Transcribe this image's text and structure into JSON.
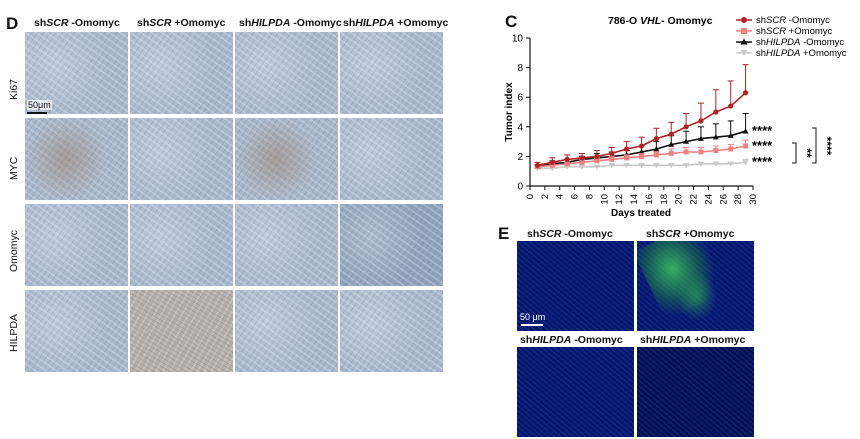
{
  "panel_d": {
    "letter": "D",
    "col_headers": [
      {
        "pre": "sh",
        "gene": "SCR",
        "post": " -Omomyc"
      },
      {
        "pre": "sh",
        "gene": "SCR",
        "post": " +Omomyc"
      },
      {
        "pre": "sh",
        "gene": "HILPDA",
        "post": " -Omomyc"
      },
      {
        "pre": "sh",
        "gene": "HILPDA",
        "post": " +Omomyc"
      }
    ],
    "row_labels": [
      "Ki67",
      "MYC",
      "Omomyc",
      "HILPDA"
    ],
    "scale_bar": "50μm"
  },
  "panel_c": {
    "letter": "C",
    "chart_data": {
      "type": "line",
      "title_pre": "786-O ",
      "title_gene": "VHL-",
      "title_post": " Omomyc",
      "xlabel": "Days treated",
      "ylabel": "Tumor index",
      "xlim": [
        0,
        30
      ],
      "ylim": [
        0,
        10
      ],
      "xticks": [
        "0",
        "2",
        "4",
        "6",
        "8",
        "10",
        "12",
        "14",
        "16",
        "18",
        "20",
        "22",
        "24",
        "26",
        "28",
        "30"
      ],
      "yticks": [
        "0",
        "2",
        "4",
        "6",
        "8",
        "10"
      ],
      "x": [
        1,
        3,
        5,
        7,
        9,
        11,
        13,
        15,
        17,
        19,
        21,
        23,
        25,
        27,
        29
      ],
      "series": [
        {
          "name_pre": "sh",
          "name_gene": "SCR",
          "name_post": " -Omomyc",
          "color": "#b22222",
          "marker": "circle",
          "values": [
            1.4,
            1.6,
            1.8,
            1.9,
            2.0,
            2.2,
            2.5,
            2.7,
            3.2,
            3.5,
            4.0,
            4.4,
            5.0,
            5.4,
            6.3
          ],
          "errors": [
            0.2,
            0.3,
            0.3,
            0.3,
            0.4,
            0.4,
            0.5,
            0.6,
            0.7,
            0.8,
            0.9,
            1.2,
            1.5,
            1.7,
            1.9
          ]
        },
        {
          "name_pre": "sh",
          "name_gene": "SCR",
          "name_post": " +Omomyc",
          "color": "#f08080",
          "marker": "square",
          "values": [
            1.3,
            1.4,
            1.5,
            1.6,
            1.7,
            1.8,
            1.9,
            2.0,
            2.1,
            2.2,
            2.3,
            2.3,
            2.4,
            2.5,
            2.7
          ],
          "errors": [
            0.1,
            0.1,
            0.1,
            0.2,
            0.2,
            0.2,
            0.2,
            0.2,
            0.2,
            0.3,
            0.3,
            0.3,
            0.3,
            0.3,
            0.4
          ]
        },
        {
          "name_pre": "sh",
          "name_gene": "HILPDA",
          "name_post": " -Omomyc",
          "color": "#111111",
          "marker": "triangle",
          "values": [
            1.3,
            1.5,
            1.6,
            1.8,
            1.9,
            2.0,
            2.1,
            2.3,
            2.5,
            2.8,
            3.0,
            3.2,
            3.3,
            3.4,
            3.7
          ],
          "errors": [
            0.1,
            0.2,
            0.2,
            0.2,
            0.3,
            0.3,
            0.3,
            0.4,
            0.5,
            0.6,
            0.7,
            0.8,
            0.9,
            1.0,
            1.2
          ]
        },
        {
          "name_pre": "sh",
          "name_gene": "HILPDA",
          "name_post": " +Omomyc",
          "color": "#c8c8c8",
          "marker": "triangle-down",
          "values": [
            1.2,
            1.2,
            1.3,
            1.3,
            1.3,
            1.4,
            1.4,
            1.4,
            1.4,
            1.4,
            1.4,
            1.5,
            1.5,
            1.5,
            1.6
          ],
          "errors": [
            0.1,
            0.1,
            0.1,
            0.1,
            0.1,
            0.1,
            0.1,
            0.1,
            0.1,
            0.1,
            0.1,
            0.1,
            0.1,
            0.1,
            0.2
          ]
        }
      ],
      "significance": [
        "****",
        "****",
        "****",
        "**",
        "****"
      ]
    }
  },
  "panel_e": {
    "letter": "E",
    "headers": [
      {
        "pre": "sh",
        "gene": "SCR",
        "post": " -Omomyc"
      },
      {
        "pre": "sh",
        "gene": "SCR",
        "post": " +Omomyc"
      },
      {
        "pre": "sh",
        "gene": "HILPDA",
        "post": " -Omomyc"
      },
      {
        "pre": "sh",
        "gene": "HILPDA",
        "post": " +Omomyc"
      }
    ],
    "scale_bar": "50 μm"
  }
}
